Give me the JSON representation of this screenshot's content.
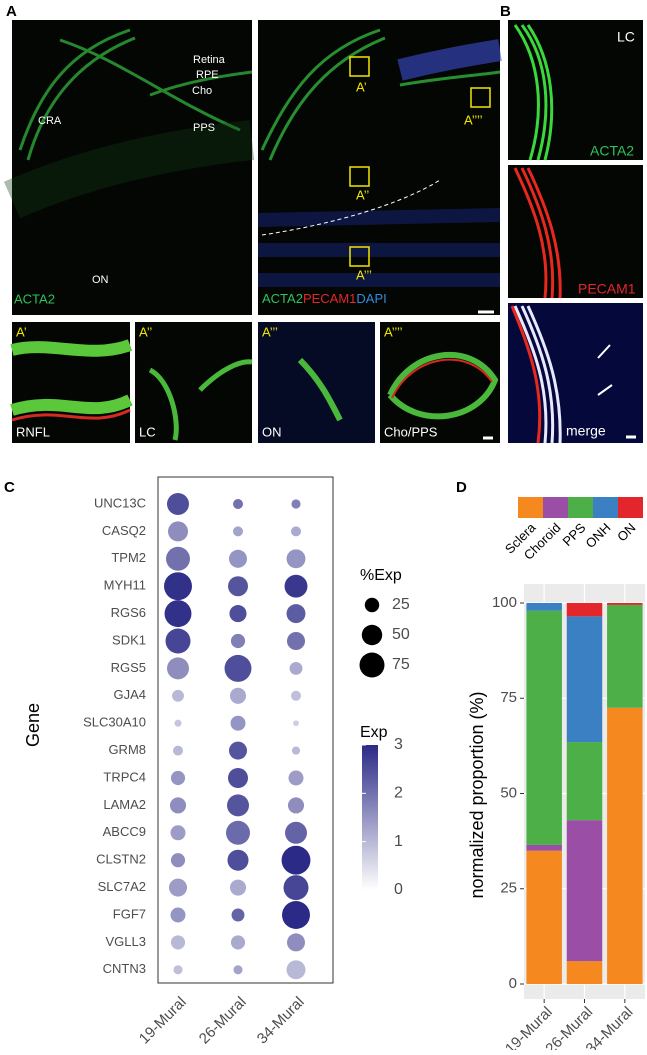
{
  "panel_labels": [
    "A",
    "B",
    "C",
    "D"
  ],
  "panel_a": {
    "overview_labels": [
      "Retina",
      "RPE",
      "Cho",
      "PPS",
      "CRA",
      "ON"
    ],
    "overview_stain": "ACTA2",
    "merge_stains": [
      "ACTA2",
      "PECAM1",
      "DAPI"
    ],
    "roi_labels": [
      "A’",
      "A’’",
      "A’’’",
      "A’’’’"
    ],
    "inset_regions": [
      "RNFL",
      "LC",
      "ON",
      "Cho/PPS"
    ]
  },
  "panel_b": {
    "region": "LC",
    "channels": [
      "ACTA2",
      "PECAM1",
      "merge"
    ]
  },
  "chart_data": [
    {
      "type": "dot",
      "y_label": "Gene",
      "categories": [
        "UNC13C",
        "CASQ2",
        "TPM2",
        "MYH11",
        "RGS6",
        "SDK1",
        "RGS5",
        "GJA4",
        "SLC30A10",
        "GRM8",
        "TRPC4",
        "LAMA2",
        "ABCC9",
        "CLSTN2",
        "SLC7A2",
        "FGF7",
        "VGLL3",
        "CNTN3"
      ],
      "series": [
        {
          "name": "19-Mural",
          "pct_exp": [
            58,
            48,
            69,
            94,
            87,
            75,
            58,
            17,
            6,
            12,
            24,
            31,
            27,
            24,
            39,
            27,
            24,
            10
          ],
          "exp": [
            2.5,
            1.6,
            2.0,
            2.9,
            2.9,
            2.6,
            1.6,
            1.0,
            0.8,
            1.0,
            1.5,
            1.6,
            1.4,
            1.6,
            1.4,
            1.5,
            1.0,
            0.9
          ]
        },
        {
          "name": "26-Mural",
          "pct_exp": [
            12,
            12,
            39,
            48,
            35,
            24,
            87,
            31,
            27,
            39,
            48,
            58,
            69,
            53,
            31,
            20,
            24,
            10
          ],
          "exp": [
            2.0,
            1.3,
            1.5,
            2.4,
            2.5,
            1.8,
            2.5,
            1.2,
            1.5,
            2.4,
            2.5,
            2.4,
            2.1,
            2.5,
            1.2,
            2.2,
            1.2,
            1.3
          ]
        },
        {
          "name": "34-Mural",
          "pct_exp": [
            10,
            12,
            43,
            63,
            43,
            39,
            20,
            12,
            4,
            8,
            27,
            31,
            58,
            100,
            75,
            94,
            39,
            43
          ],
          "exp": [
            1.8,
            1.2,
            1.5,
            2.8,
            2.3,
            2.0,
            1.2,
            0.9,
            0.7,
            1.0,
            1.4,
            1.6,
            2.2,
            3.0,
            2.6,
            3.0,
            1.6,
            1.0
          ]
        }
      ],
      "size_title": "%Exp",
      "size_ticks": [
        25,
        50,
        75
      ],
      "color_title": "Exp",
      "color_lim": [
        0,
        3
      ],
      "color_ticks": [
        0,
        1,
        2,
        3
      ],
      "color_range": [
        "#ffffff",
        "#2b2a86"
      ]
    },
    {
      "type": "stacked_bar",
      "y_label": "normalized proportion (%)",
      "categories": [
        "19-Mural",
        "26-Mural",
        "34-Mural"
      ],
      "series": [
        {
          "name": "Sclera",
          "color": "#f5891f",
          "values": [
            35,
            6,
            72.5
          ]
        },
        {
          "name": "Choroid",
          "color": "#9a4ea6",
          "values": [
            1.5,
            37,
            0
          ]
        },
        {
          "name": "PPS",
          "color": "#4caf48",
          "values": [
            61.5,
            20.5,
            27
          ]
        },
        {
          "name": "ONH",
          "color": "#3a80c2",
          "values": [
            2,
            33,
            0
          ]
        },
        {
          "name": "ON",
          "color": "#e2262b",
          "values": [
            0,
            3.5,
            0.5
          ]
        }
      ],
      "ylim": [
        0,
        100
      ],
      "yticks": [
        0,
        25,
        50,
        75,
        100
      ],
      "grid": true
    }
  ]
}
